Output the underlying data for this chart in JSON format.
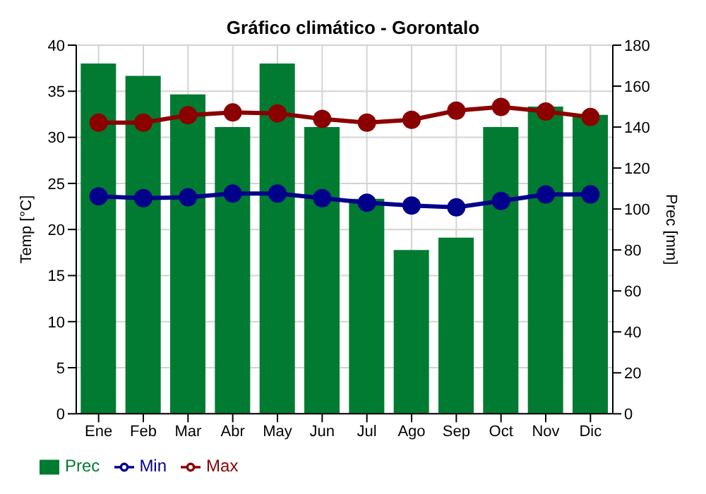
{
  "chart_data": {
    "type": "bar",
    "title": "Gráfico climático - Gorontalo",
    "xlabel": null,
    "ylabel": "Temp [°C]",
    "y2label": "Prec [mm]",
    "categories": [
      "Ene",
      "Feb",
      "Mar",
      "Abr",
      "May",
      "Jun",
      "Jul",
      "Ago",
      "Sep",
      "Oct",
      "Nov",
      "Dic"
    ],
    "series": [
      {
        "name": "Prec",
        "axis": "y2",
        "color": "#017b31",
        "values": [
          171,
          165,
          156,
          140,
          171,
          140,
          105,
          80,
          86,
          140,
          150,
          146
        ]
      },
      {
        "name": "Min",
        "type": "line",
        "axis": "y",
        "color": "#00008b",
        "values": [
          23.6,
          23.4,
          23.5,
          23.9,
          23.9,
          23.4,
          22.9,
          22.6,
          22.4,
          23.1,
          23.8,
          23.8
        ]
      },
      {
        "name": "Max",
        "type": "line",
        "axis": "y",
        "color": "#8b0000",
        "values": [
          31.6,
          31.6,
          32.4,
          32.7,
          32.6,
          32.0,
          31.6,
          31.9,
          32.9,
          33.3,
          32.8,
          32.2
        ]
      }
    ],
    "ylim": [
      0,
      40
    ],
    "yticks": [
      0,
      5,
      10,
      15,
      20,
      25,
      30,
      35,
      40
    ],
    "y2lim": [
      0,
      180
    ],
    "y2ticks": [
      0,
      20,
      40,
      60,
      80,
      100,
      120,
      140,
      160,
      180
    ],
    "grid": true,
    "legend": "bottom",
    "marker": "circle",
    "line_style": "solid"
  }
}
